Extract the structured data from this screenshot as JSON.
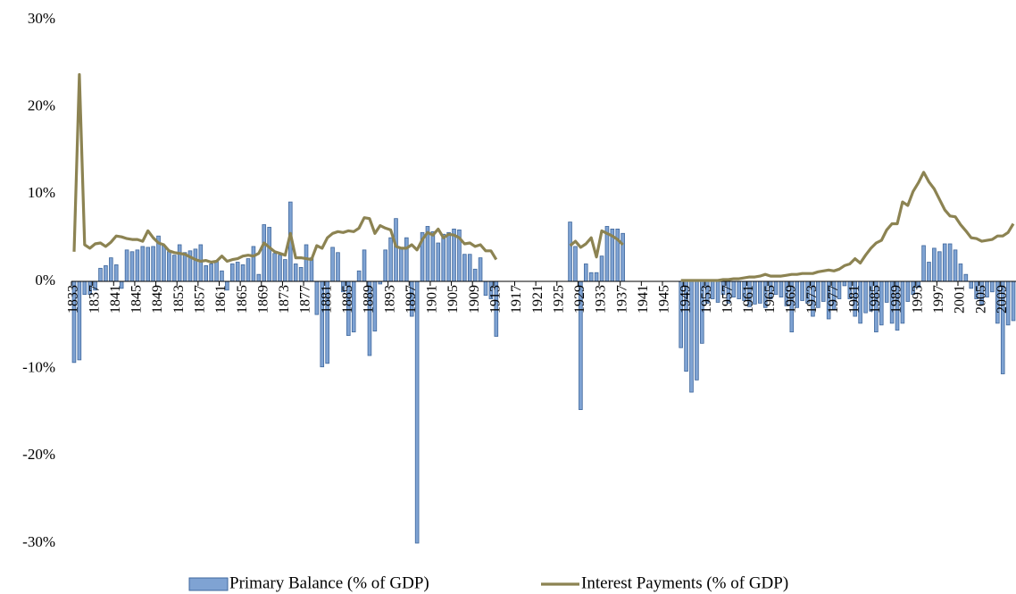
{
  "chart_data": {
    "type": "bar_line",
    "categories": [
      "1833",
      null,
      null,
      null,
      "1837",
      null,
      null,
      null,
      "1841",
      null,
      null,
      null,
      "1845",
      null,
      null,
      null,
      "1849",
      null,
      null,
      null,
      "1853",
      null,
      null,
      null,
      "1857",
      null,
      null,
      null,
      "1861",
      null,
      null,
      null,
      "1865",
      null,
      null,
      null,
      "1869",
      null,
      null,
      null,
      "1873",
      null,
      null,
      null,
      "1877",
      null,
      null,
      null,
      "1881",
      null,
      null,
      null,
      "1885",
      null,
      null,
      null,
      "1889",
      null,
      null,
      null,
      "1893",
      null,
      null,
      null,
      "1897",
      null,
      null,
      null,
      "1901",
      null,
      null,
      null,
      "1905",
      null,
      null,
      null,
      "1909",
      null,
      null,
      null,
      "1913",
      null,
      null,
      null,
      "1917",
      null,
      null,
      null,
      "1921",
      null,
      null,
      null,
      "1925",
      null,
      null,
      null,
      "1929",
      null,
      null,
      null,
      "1933",
      null,
      null,
      null,
      "1937",
      null,
      null,
      null,
      "1941",
      null,
      null,
      null,
      "1945",
      null,
      null,
      null,
      "1949",
      null,
      null,
      null,
      "1953",
      null,
      null,
      null,
      "1957",
      null,
      null,
      null,
      "1961",
      null,
      null,
      null,
      "1965",
      null,
      null,
      null,
      "1969",
      null,
      null,
      null,
      "1973",
      null,
      null,
      null,
      "1977",
      null,
      null,
      null,
      "1981",
      null,
      null,
      null,
      "1985",
      null,
      null,
      null,
      "1989",
      null,
      null,
      null,
      "1993",
      null,
      null,
      null,
      "1997",
      null,
      null,
      null,
      "2001",
      null,
      null,
      null,
      "2005",
      null,
      null,
      null,
      "2009",
      null,
      null
    ],
    "series": [
      {
        "name": "Primary Balance (% of GDP)",
        "type": "bar",
        "color": "#7fa3d3",
        "values": [
          -9.3,
          -9,
          -1.5,
          -1.5,
          -1,
          1.5,
          1.8,
          2.7,
          1.9,
          -0.8,
          3.6,
          3.4,
          3.6,
          4.0,
          3.9,
          4.0,
          5.2,
          4.1,
          3.4,
          3.0,
          4.2,
          3.3,
          3.5,
          3.7,
          4.2,
          1.8,
          2.0,
          2.3,
          1.2,
          -1.0,
          2.0,
          2.2,
          1.9,
          2.6,
          4.0,
          0.8,
          6.5,
          6.2,
          3.2,
          3.0,
          2.5,
          9.1,
          2.0,
          1.6,
          4.2,
          2.7,
          -3.8,
          -9.8,
          -9.4,
          3.9,
          3.3,
          -1.2,
          -6.2,
          -5.8,
          1.2,
          3.6,
          -8.5,
          -5.7,
          -0.3,
          3.6,
          5.0,
          7.2,
          3.8,
          5.0,
          -4.0,
          -30.0,
          5.6,
          6.3,
          5.7,
          4.4,
          5.4,
          5.6,
          6.0,
          5.9,
          3.1,
          3.1,
          1.4,
          2.7,
          -1.6,
          -2.0,
          -6.3,
          null,
          null,
          null,
          null,
          null,
          null,
          null,
          null,
          null,
          null,
          null,
          null,
          null,
          6.8,
          4.0,
          -14.7,
          2.0,
          1.0,
          1.0,
          2.9,
          6.3,
          6.0,
          6.0,
          5.5,
          null,
          null,
          null,
          null,
          null,
          null,
          null,
          null,
          null,
          null,
          -7.6,
          -10.3,
          -12.7,
          -11.3,
          -7.1,
          -2.5,
          -2.0,
          -2.4,
          -1.5,
          -2.5,
          -1.8,
          -2.0,
          -2.2,
          -2.9,
          -2.6,
          -2.5,
          -3.0,
          -2.0,
          -1.5,
          -1.8,
          -2.8,
          -5.8,
          -3.0,
          -2.2,
          -2.5,
          -4.0,
          -3.0,
          -2.3,
          -4.3,
          -3.2,
          -2.0,
          -0.5,
          -2.0,
          -4.0,
          -4.8,
          -3.6,
          -3.4,
          -5.8,
          -5.0,
          -2.4,
          -4.8,
          -5.6,
          -4.8,
          -2.3,
          -1.5,
          -0.7,
          4.1,
          2.2,
          3.8,
          3.4,
          4.3,
          4.3,
          3.6,
          2.0,
          0.8,
          -0.8,
          -2.0,
          -2.6,
          -1.8,
          -1.2,
          -4.8,
          -10.6,
          -5.0,
          -4.5
        ]
      },
      {
        "name": "Interest Payments (% of GDP)",
        "type": "line",
        "color": "#8c8352",
        "values": [
          3.4,
          23.7,
          4.2,
          3.8,
          4.3,
          4.4,
          4.0,
          4.5,
          5.2,
          5.1,
          4.9,
          4.8,
          4.8,
          4.6,
          5.8,
          5.0,
          4.4,
          4.2,
          3.5,
          3.3,
          3.2,
          3.1,
          2.8,
          2.5,
          2.3,
          2.4,
          2.2,
          2.3,
          2.9,
          2.3,
          2.5,
          2.6,
          2.9,
          3.0,
          2.9,
          3.2,
          4.4,
          3.9,
          3.4,
          3.2,
          3.0,
          5.5,
          2.7,
          2.7,
          2.6,
          2.5,
          4.1,
          3.8,
          5.0,
          5.5,
          5.7,
          5.6,
          5.8,
          5.7,
          6.1,
          7.3,
          7.2,
          5.5,
          6.4,
          6.1,
          5.9,
          4.0,
          3.8,
          3.8,
          4.2,
          3.6,
          4.8,
          5.6,
          5.3,
          6.0,
          5.0,
          5.4,
          5.3,
          5.0,
          4.3,
          4.4,
          4.0,
          4.2,
          3.5,
          3.5,
          2.5,
          null,
          null,
          null,
          null,
          null,
          null,
          null,
          null,
          null,
          null,
          null,
          null,
          null,
          4.1,
          4.6,
          3.9,
          4.3,
          5.0,
          2.8,
          5.8,
          5.5,
          5.2,
          4.8,
          4.2,
          null,
          null,
          null,
          null,
          null,
          null,
          null,
          null,
          null,
          null,
          0.1,
          0.1,
          0.1,
          0.1,
          0.1,
          0.1,
          0.1,
          0.1,
          0.2,
          0.2,
          0.3,
          0.3,
          0.4,
          0.5,
          0.5,
          0.6,
          0.8,
          0.6,
          0.6,
          0.6,
          0.7,
          0.8,
          0.8,
          0.9,
          0.9,
          0.9,
          1.1,
          1.2,
          1.3,
          1.2,
          1.4,
          1.8,
          2.0,
          2.6,
          2.1,
          3.0,
          3.8,
          4.4,
          4.7,
          5.9,
          6.6,
          6.6,
          9.1,
          8.7,
          10.3,
          11.3,
          12.5,
          11.4,
          10.6,
          9.4,
          8.2,
          7.5,
          7.4,
          6.5,
          5.8,
          5.0,
          4.9,
          4.6,
          4.7,
          4.8,
          5.2,
          5.2,
          5.6,
          6.6
        ]
      }
    ],
    "ylim": [
      -30,
      30
    ],
    "yticks": [
      {
        "value": -30,
        "label": "-30%"
      },
      {
        "value": -20,
        "label": "-20%"
      },
      {
        "value": -10,
        "label": "-10%"
      },
      {
        "value": 0,
        "label": "0%"
      },
      {
        "value": 10,
        "label": "10%"
      },
      {
        "value": 20,
        "label": "20%"
      },
      {
        "value": 30,
        "label": "30%"
      }
    ],
    "grid": false,
    "legend": "bottom"
  }
}
